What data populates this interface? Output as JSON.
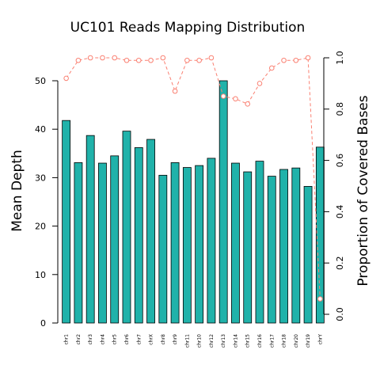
{
  "chart_data": {
    "type": "bar",
    "title": "UC101 Reads Mapping Distribution",
    "ylabel": "Mean Depth",
    "y2label": "Proportion of Covered Bases",
    "ylim": [
      0,
      50
    ],
    "y2lim": [
      0,
      1
    ],
    "yticks": [
      "0",
      "10",
      "20",
      "30",
      "40",
      "50"
    ],
    "y2ticks": [
      "0.0",
      "0.2",
      "0.4",
      "0.6",
      "0.8",
      "1.0"
    ],
    "grid": false,
    "categories": [
      "chr1",
      "chr2",
      "chr3",
      "chr4",
      "chr5",
      "chr6",
      "chr7",
      "chrX",
      "chr8",
      "chr9",
      "chr11",
      "chr10",
      "chr12",
      "chr13",
      "chr14",
      "chr15",
      "chr16",
      "chr17",
      "chr18",
      "chr20",
      "chr19",
      "chrY"
    ],
    "series": [
      {
        "kind": "bar",
        "axis": "left",
        "color": "#20b2aa",
        "values": [
          41.8,
          33.1,
          38.7,
          33.0,
          34.5,
          39.6,
          36.2,
          37.9,
          30.5,
          33.1,
          32.1,
          32.5,
          34.0,
          50.0,
          33.0,
          31.2,
          33.4,
          30.3,
          31.7,
          32.0,
          28.2,
          36.3
        ]
      },
      {
        "kind": "line",
        "axis": "right",
        "color": "#fa8072",
        "values": [
          0.92,
          0.99,
          1.0,
          1.0,
          1.0,
          0.99,
          0.99,
          0.99,
          1.0,
          0.87,
          0.99,
          0.99,
          1.0,
          0.85,
          0.84,
          0.82,
          0.9,
          0.96,
          0.99,
          0.99,
          1.0,
          0.06
        ]
      }
    ]
  }
}
